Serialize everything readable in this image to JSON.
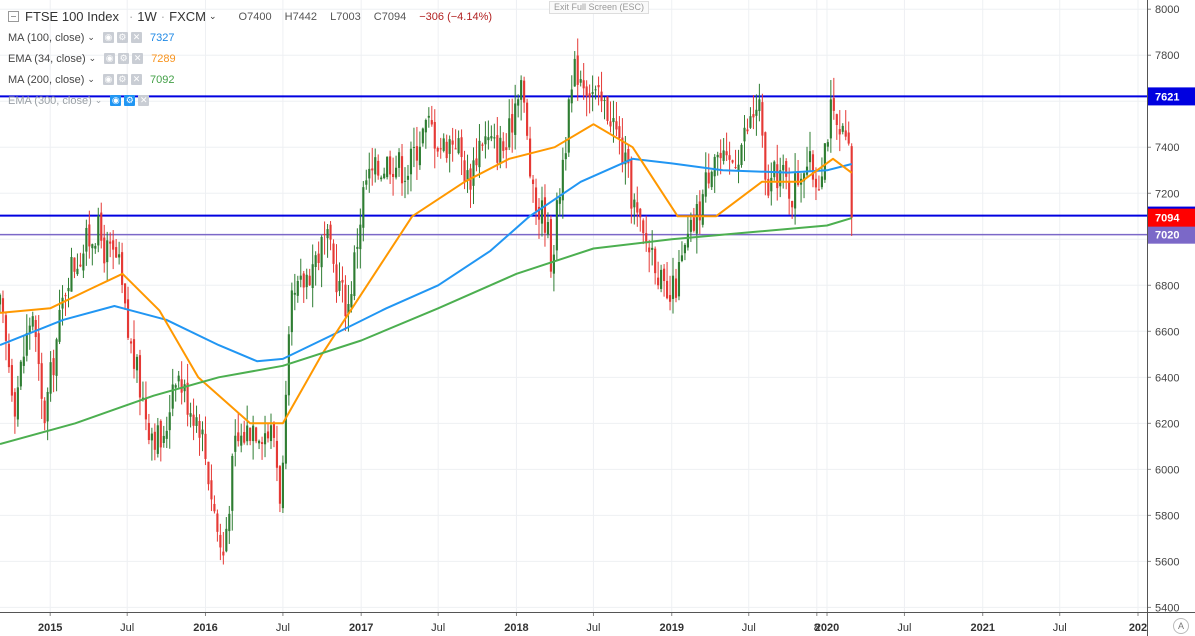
{
  "header": {
    "symbol": "FTSE 100 Index",
    "interval": "1W",
    "source": "FXCM",
    "ohlc": {
      "open": "O7400",
      "high": "H7442",
      "low": "L7003",
      "close": "C7094",
      "change": "−306 (−4.14%)"
    }
  },
  "exit_fullscreen": "Exit Full Screen (ESC)",
  "indicators": [
    {
      "label": "MA (100, close)",
      "value": "7327",
      "color": "#1e88e5"
    },
    {
      "label": "EMA (34, close)",
      "value": "7289",
      "color": "#f7931e"
    },
    {
      "label": "MA (200, close)",
      "value": "7092",
      "color": "#43a047"
    },
    {
      "label": "EMA (300, close)",
      "value": "",
      "color": "#9aa0a6"
    }
  ],
  "auto_scale_label": "A",
  "colors": {
    "up": "#2e7d32",
    "down": "#e53935",
    "ma100": "#2196f3",
    "ema34": "#ff9800",
    "ma200": "#4caf50",
    "hline": "#0000e0",
    "hline_purple": "#7b68c8",
    "price_red": "#ff0000"
  },
  "chart_data": {
    "type": "candlestick",
    "title": "FTSE 100 Index · 1W · FXCM",
    "ylim": [
      5380,
      8040
    ],
    "y_ticks": [
      5400,
      5600,
      5800,
      6000,
      6200,
      6400,
      6600,
      6800,
      7000,
      7200,
      7400,
      7600,
      7800,
      8000
    ],
    "x_ticks": [
      "2015",
      "Jul",
      "2016",
      "Jul",
      "2017",
      "Jul",
      "2018",
      "Jul",
      "2019",
      "Jul",
      "8",
      "2020",
      "Jul",
      "2021",
      "Jul",
      "202"
    ],
    "x_tick_dates": [
      "2015-01-01",
      "2015-07-01",
      "2016-01-01",
      "2016-07-01",
      "2017-01-01",
      "2017-07-01",
      "2018-01-01",
      "2018-07-01",
      "2019-01-01",
      "2019-07-01",
      "2019-12-08",
      "2020-01-01",
      "2020-07-01",
      "2021-01-01",
      "2021-07-01",
      "2022-01-01"
    ],
    "first_date": "2014-09-05",
    "last_bar_date": "2020-02-28",
    "close_path": [
      [
        "2014-09-05",
        6700
      ],
      [
        "2014-10-10",
        6300
      ],
      [
        "2014-11-20",
        6700
      ],
      [
        "2014-12-16",
        6200
      ],
      [
        "2015-02-10",
        6850
      ],
      [
        "2015-04-20",
        7050
      ],
      [
        "2015-05-10",
        6950
      ],
      [
        "2015-06-10",
        6900
      ],
      [
        "2015-07-01",
        6600
      ],
      [
        "2015-08-20",
        6200
      ],
      [
        "2015-09-25",
        6100
      ],
      [
        "2015-10-20",
        6450
      ],
      [
        "2015-11-20",
        6300
      ],
      [
        "2015-12-20",
        6200
      ],
      [
        "2016-02-10",
        5600
      ],
      [
        "2016-03-10",
        6100
      ],
      [
        "2016-04-20",
        6200
      ],
      [
        "2016-06-10",
        6150
      ],
      [
        "2016-06-27",
        5850
      ],
      [
        "2016-07-20",
        6700
      ],
      [
        "2016-09-10",
        6900
      ],
      [
        "2016-10-10",
        7000
      ],
      [
        "2016-11-10",
        6800
      ],
      [
        "2016-12-01",
        6700
      ],
      [
        "2017-01-10",
        7250
      ],
      [
        "2017-03-10",
        7350
      ],
      [
        "2017-04-20",
        7300
      ],
      [
        "2017-05-20",
        7450
      ],
      [
        "2017-06-10",
        7500
      ],
      [
        "2017-07-10",
        7400
      ],
      [
        "2017-08-10",
        7450
      ],
      [
        "2017-09-10",
        7250
      ],
      [
        "2017-10-10",
        7450
      ],
      [
        "2017-11-10",
        7400
      ],
      [
        "2017-12-10",
        7400
      ],
      [
        "2018-01-10",
        7730
      ],
      [
        "2018-02-10",
        7150
      ],
      [
        "2018-03-10",
        7100
      ],
      [
        "2018-03-25",
        6900
      ],
      [
        "2018-04-20",
        7350
      ],
      [
        "2018-05-20",
        7750
      ],
      [
        "2018-06-10",
        7700
      ],
      [
        "2018-07-10",
        7600
      ],
      [
        "2018-08-10",
        7550
      ],
      [
        "2018-09-10",
        7350
      ],
      [
        "2018-10-10",
        7100
      ],
      [
        "2018-10-25",
        7000
      ],
      [
        "2018-11-20",
        6950
      ],
      [
        "2018-12-20",
        6700
      ],
      [
        "2019-01-10",
        6800
      ],
      [
        "2019-02-10",
        7000
      ],
      [
        "2019-03-10",
        7150
      ],
      [
        "2019-04-10",
        7400
      ],
      [
        "2019-05-10",
        7300
      ],
      [
        "2019-06-10",
        7400
      ],
      [
        "2019-07-25",
        7600
      ],
      [
        "2019-08-10",
        7200
      ],
      [
        "2019-09-10",
        7300
      ],
      [
        "2019-10-10",
        7200
      ],
      [
        "2019-11-10",
        7350
      ],
      [
        "2019-12-10",
        7250
      ],
      [
        "2020-01-10",
        7550
      ],
      [
        "2020-01-25",
        7450
      ],
      [
        "2020-02-20",
        7400
      ],
      [
        "2020-02-28",
        7094
      ]
    ],
    "series": [
      {
        "name": "MA (100, close)",
        "points": [
          [
            "2014-09-05",
            6540
          ],
          [
            "2015-02-01",
            6650
          ],
          [
            "2015-06-01",
            6710
          ],
          [
            "2015-10-01",
            6650
          ],
          [
            "2016-02-01",
            6540
          ],
          [
            "2016-05-01",
            6470
          ],
          [
            "2016-07-01",
            6480
          ],
          [
            "2016-11-01",
            6590
          ],
          [
            "2017-03-01",
            6700
          ],
          [
            "2017-07-01",
            6800
          ],
          [
            "2017-11-01",
            6950
          ],
          [
            "2018-02-01",
            7100
          ],
          [
            "2018-06-01",
            7250
          ],
          [
            "2018-10-01",
            7350
          ],
          [
            "2019-01-01",
            7330
          ],
          [
            "2019-05-01",
            7300
          ],
          [
            "2019-10-01",
            7290
          ],
          [
            "2020-01-01",
            7300
          ],
          [
            "2020-02-28",
            7327
          ]
        ]
      },
      {
        "name": "EMA (34, close)",
        "points": [
          [
            "2014-09-05",
            6680
          ],
          [
            "2015-01-01",
            6700
          ],
          [
            "2015-04-01",
            6780
          ],
          [
            "2015-06-20",
            6850
          ],
          [
            "2015-09-15",
            6690
          ],
          [
            "2015-12-15",
            6400
          ],
          [
            "2016-04-15",
            6200
          ],
          [
            "2016-07-01",
            6200
          ],
          [
            "2016-10-01",
            6500
          ],
          [
            "2017-01-15",
            6800
          ],
          [
            "2017-05-01",
            7100
          ],
          [
            "2017-09-01",
            7250
          ],
          [
            "2017-12-15",
            7350
          ],
          [
            "2018-04-01",
            7400
          ],
          [
            "2018-07-01",
            7500
          ],
          [
            "2018-10-01",
            7400
          ],
          [
            "2019-01-15",
            7100
          ],
          [
            "2019-04-15",
            7100
          ],
          [
            "2019-08-01",
            7250
          ],
          [
            "2019-11-01",
            7250
          ],
          [
            "2020-01-15",
            7350
          ],
          [
            "2020-02-28",
            7289
          ]
        ]
      },
      {
        "name": "MA (200, close)",
        "points": [
          [
            "2014-09-05",
            6110
          ],
          [
            "2015-03-01",
            6200
          ],
          [
            "2015-09-01",
            6320
          ],
          [
            "2016-02-01",
            6400
          ],
          [
            "2016-07-01",
            6450
          ],
          [
            "2017-01-01",
            6560
          ],
          [
            "2017-07-01",
            6700
          ],
          [
            "2018-01-01",
            6850
          ],
          [
            "2018-07-01",
            6960
          ],
          [
            "2019-01-01",
            7000
          ],
          [
            "2019-07-01",
            7030
          ],
          [
            "2020-01-01",
            7060
          ],
          [
            "2020-02-28",
            7092
          ]
        ]
      }
    ],
    "hlines": [
      {
        "value": 7621,
        "label": "7621",
        "color": "#0000e0",
        "label_bg": "#0000e0"
      },
      {
        "value": 7103,
        "label": "7103",
        "color": "#0000e0",
        "label_bg": "#0000e0"
      },
      {
        "value": 7020,
        "label": "7020",
        "color": "#7b68c8",
        "label_bg": "#7b68c8"
      }
    ],
    "last_price": {
      "value": 7094,
      "label": "7094",
      "label_bg": "#ff0000"
    }
  }
}
